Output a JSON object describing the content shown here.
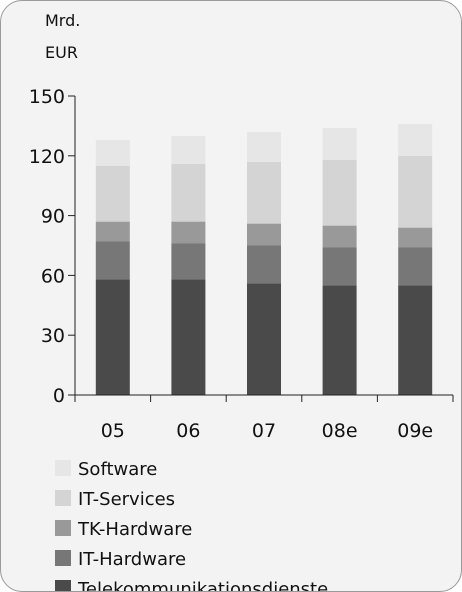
{
  "chart_data": {
    "type": "bar",
    "stacked": true,
    "unit_label": [
      "Mrd.",
      "EUR"
    ],
    "categories": [
      "05",
      "06",
      "07",
      "08e",
      "09e"
    ],
    "series": [
      {
        "name": "Telekommunikationsdienste",
        "color": "#4a4a4a",
        "values": [
          58,
          58,
          56,
          55,
          55
        ]
      },
      {
        "name": "IT-Hardware",
        "color": "#777777",
        "values": [
          19,
          18,
          19,
          19,
          19
        ]
      },
      {
        "name": "TK-Hardware",
        "color": "#999999",
        "values": [
          10,
          11,
          11,
          11,
          10
        ]
      },
      {
        "name": "IT-Services",
        "color": "#d4d4d4",
        "values": [
          28,
          29,
          31,
          33,
          36
        ]
      },
      {
        "name": "Software",
        "color": "#e6e6e6",
        "values": [
          13,
          14,
          15,
          16,
          16
        ]
      }
    ],
    "yticks": [
      0,
      30,
      60,
      90,
      120,
      150
    ],
    "ylim": [
      0,
      150
    ],
    "grid": false,
    "legend_position": "bottom",
    "legend_order": [
      "Software",
      "IT-Services",
      "TK-Hardware",
      "IT-Hardware",
      "Telekommunikationsdienste"
    ]
  }
}
